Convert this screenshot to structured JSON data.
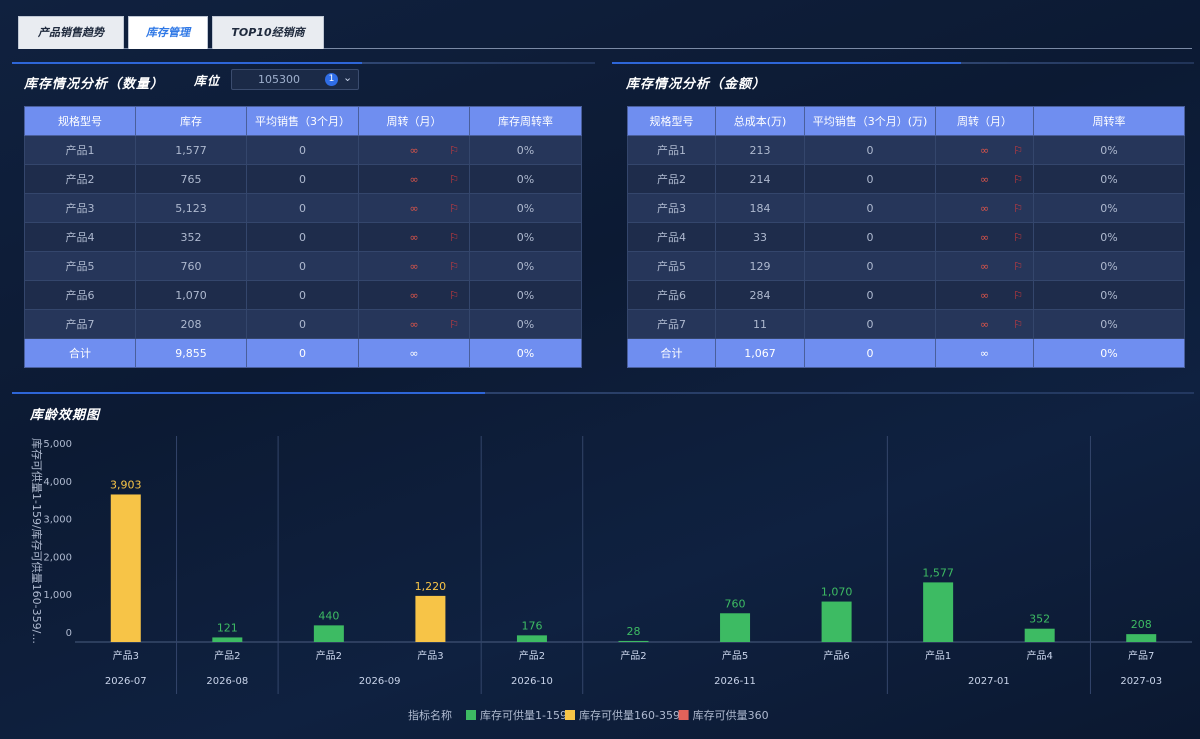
{
  "tabs": [
    {
      "label": "产品销售趋势",
      "active": false
    },
    {
      "label": "库存管理",
      "active": true
    },
    {
      "label": "TOP10经销商",
      "active": false
    }
  ],
  "qty_panel": {
    "title": "库存情况分析（数量）",
    "filter_label": "库位",
    "filter_value": "105300",
    "filter_count": "1",
    "headers": [
      "规格型号",
      "库存",
      "平均销售（3个月）",
      "周转（月）",
      "库存周转率"
    ],
    "rows": [
      [
        "产品1",
        "1,577",
        "0",
        "∞",
        "0%"
      ],
      [
        "产品2",
        "765",
        "0",
        "∞",
        "0%"
      ],
      [
        "产品3",
        "5,123",
        "0",
        "∞",
        "0%"
      ],
      [
        "产品4",
        "352",
        "0",
        "∞",
        "0%"
      ],
      [
        "产品5",
        "760",
        "0",
        "∞",
        "0%"
      ],
      [
        "产品6",
        "1,070",
        "0",
        "∞",
        "0%"
      ],
      [
        "产品7",
        "208",
        "0",
        "∞",
        "0%"
      ]
    ],
    "total": [
      "合计",
      "9,855",
      "0",
      "∞",
      "0%"
    ]
  },
  "amt_panel": {
    "title": "库存情况分析（金额）",
    "headers": [
      "规格型号",
      "总成本(万)",
      "平均销售（3个月）(万)",
      "周转（月）",
      "周转率"
    ],
    "rows": [
      [
        "产品1",
        "213",
        "0",
        "∞",
        "0%"
      ],
      [
        "产品2",
        "214",
        "0",
        "∞",
        "0%"
      ],
      [
        "产品3",
        "184",
        "0",
        "∞",
        "0%"
      ],
      [
        "产品4",
        "33",
        "0",
        "∞",
        "0%"
      ],
      [
        "产品5",
        "129",
        "0",
        "∞",
        "0%"
      ],
      [
        "产品6",
        "284",
        "0",
        "∞",
        "0%"
      ],
      [
        "产品7",
        "11",
        "0",
        "∞",
        "0%"
      ]
    ],
    "total": [
      "合计",
      "1,067",
      "0",
      "∞",
      "0%"
    ]
  },
  "chart_title": "库龄效期图",
  "chart_data": {
    "type": "bar",
    "ylabel": "库存可供量1-159/库存可供量160-359/...",
    "ylim": [
      0,
      5000
    ],
    "yticks": [
      "0",
      "1,000",
      "2,000",
      "3,000",
      "4,000",
      "5,000"
    ],
    "groups": [
      {
        "month": "2026-07",
        "bars": [
          {
            "product": "产品3",
            "value": 3903,
            "label": "3,903",
            "series": 1
          }
        ]
      },
      {
        "month": "2026-08",
        "bars": [
          {
            "product": "产品2",
            "value": 121,
            "label": "121",
            "series": 0
          }
        ]
      },
      {
        "month": "2026-09",
        "bars": [
          {
            "product": "产品2",
            "value": 440,
            "label": "440",
            "series": 0
          },
          {
            "product": "产品3",
            "value": 1220,
            "label": "1,220",
            "series": 1
          }
        ]
      },
      {
        "month": "2026-10",
        "bars": [
          {
            "product": "产品2",
            "value": 176,
            "label": "176",
            "series": 0
          }
        ]
      },
      {
        "month": "2026-11",
        "bars": [
          {
            "product": "产品2",
            "value": 28,
            "label": "28",
            "series": 0
          },
          {
            "product": "产品5",
            "value": 760,
            "label": "760",
            "series": 0
          },
          {
            "product": "产品6",
            "value": 1070,
            "label": "1,070",
            "series": 0
          }
        ]
      },
      {
        "month": "2027-01",
        "bars": [
          {
            "product": "产品1",
            "value": 1577,
            "label": "1,577",
            "series": 0
          },
          {
            "product": "产品4",
            "value": 352,
            "label": "352",
            "series": 0
          }
        ]
      },
      {
        "month": "2027-03",
        "bars": [
          {
            "product": "产品7",
            "value": 208,
            "label": "208",
            "series": 0
          }
        ]
      }
    ],
    "legend_title": "指标名称",
    "series": [
      {
        "name": "库存可供量1-159",
        "color": "#3dbb63"
      },
      {
        "name": "库存可供量160-359",
        "color": "#f7c447"
      },
      {
        "name": "库存可供量360",
        "color": "#e0625a"
      }
    ]
  }
}
